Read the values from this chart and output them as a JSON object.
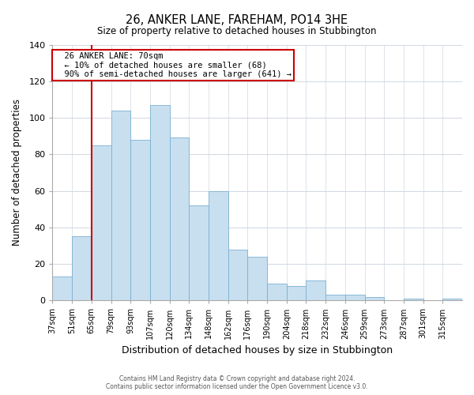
{
  "title": "26, ANKER LANE, FAREHAM, PO14 3HE",
  "subtitle": "Size of property relative to detached houses in Stubbington",
  "xlabel": "Distribution of detached houses by size in Stubbington",
  "ylabel": "Number of detached properties",
  "bin_labels": [
    "37sqm",
    "51sqm",
    "65sqm",
    "79sqm",
    "93sqm",
    "107sqm",
    "120sqm",
    "134sqm",
    "148sqm",
    "162sqm",
    "176sqm",
    "190sqm",
    "204sqm",
    "218sqm",
    "232sqm",
    "246sqm",
    "259sqm",
    "273sqm",
    "287sqm",
    "301sqm",
    "315sqm"
  ],
  "bar_heights": [
    13,
    35,
    85,
    104,
    88,
    107,
    89,
    52,
    60,
    28,
    24,
    9,
    8,
    11,
    3,
    3,
    2,
    0,
    1,
    0,
    1
  ],
  "bar_color": "#c8dff0",
  "bar_edge_color": "#7ab0d0",
  "property_line_x": 2,
  "property_line_label": "26 ANKER LANE: 70sqm",
  "annotation_line1": "← 10% of detached houses are smaller (68)",
  "annotation_line2": "90% of semi-detached houses are larger (641) →",
  "annotation_box_color": "#ffffff",
  "annotation_box_edge": "#cc0000",
  "vline_color": "#cc0000",
  "ylim": [
    0,
    140
  ],
  "yticks": [
    0,
    20,
    40,
    60,
    80,
    100,
    120,
    140
  ],
  "footer1": "Contains HM Land Registry data © Crown copyright and database right 2024.",
  "footer2": "Contains public sector information licensed under the Open Government Licence v3.0."
}
